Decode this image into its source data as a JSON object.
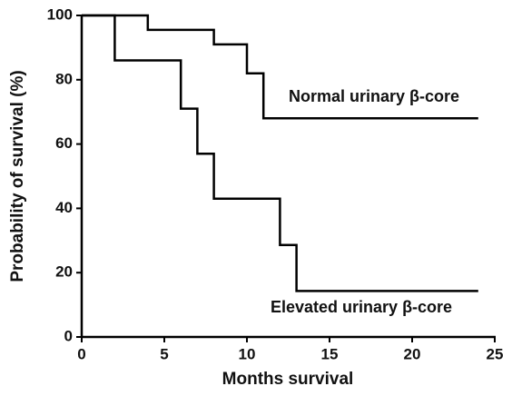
{
  "chart_data": {
    "type": "step-line",
    "x_label": "Months survival",
    "y_label": "Probability of survival (%)",
    "xlim": [
      0,
      25
    ],
    "xticks": [
      0,
      5,
      10,
      15,
      20,
      25
    ],
    "ylim": [
      0,
      100
    ],
    "yticks": [
      0,
      20,
      40,
      60,
      80,
      100
    ],
    "grid": false,
    "series": [
      {
        "name": "Normal urinary β-core",
        "color": "#000000",
        "x": [
          0,
          4,
          4,
          8,
          8,
          10,
          10,
          11,
          11,
          24
        ],
        "values": [
          100,
          100,
          95.5,
          95.5,
          91,
          91,
          82,
          82,
          68,
          68
        ]
      },
      {
        "name": "Elevated urinary β-core",
        "color": "#000000",
        "x": [
          0,
          2,
          2,
          6,
          6,
          7,
          7,
          8,
          8,
          12,
          12,
          13,
          13,
          24
        ],
        "values": [
          100,
          100,
          86,
          86,
          71,
          71,
          57,
          57,
          43,
          43,
          28.6,
          28.6,
          14.3,
          14.3
        ]
      }
    ]
  }
}
